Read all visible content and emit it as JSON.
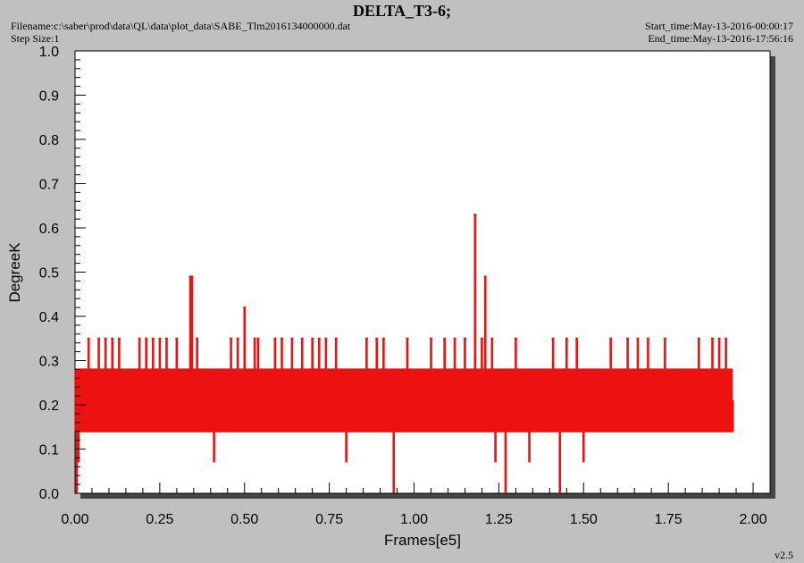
{
  "header": {
    "title": "DELTA_T3-6;",
    "filename": "Filename:c:\\saber\\prod\\data\\QL\\data\\plot_data\\SABE_Tlm2016134000000.dat",
    "step_size": "Step Size:1",
    "start_time": "Start_time:May-13-2016-00:00:17",
    "end_time": "End_time:May-13-2016-17:56:16"
  },
  "footer": {
    "version": "v2.5"
  },
  "colors": {
    "series": "#ee1111",
    "plot_bg": "#ffffff",
    "frame_bg": "#c0c0c0",
    "shadow": "#444444"
  },
  "chart_data": {
    "type": "line",
    "title": "DELTA_T3-6;",
    "xlabel": "Frames[e5]",
    "ylabel": "DegreeK",
    "xlim": [
      0.0,
      2.05
    ],
    "ylim": [
      0.0,
      1.0
    ],
    "xticks": [
      "0.00",
      "0.25",
      "0.50",
      "0.75",
      "1.00",
      "1.25",
      "1.50",
      "1.75",
      "2.00"
    ],
    "yticks": [
      "0.0",
      "0.1",
      "0.2",
      "0.3",
      "0.4",
      "0.5",
      "0.6",
      "0.7",
      "0.8",
      "0.9",
      "1.0"
    ],
    "grid": false,
    "series": [
      {
        "band": {
          "x_start": 0.0,
          "x_end": 1.94,
          "y_low": 0.14,
          "y_high": 0.28
        },
        "spikes": [
          {
            "x": 0.005,
            "y": 0.0
          },
          {
            "x": 0.01,
            "y": 0.07
          },
          {
            "x": 0.03,
            "y": 0.21
          },
          {
            "x": 0.04,
            "y": 0.35
          },
          {
            "x": 0.07,
            "y": 0.35
          },
          {
            "x": 0.08,
            "y": 0.19
          },
          {
            "x": 0.09,
            "y": 0.35
          },
          {
            "x": 0.11,
            "y": 0.35
          },
          {
            "x": 0.13,
            "y": 0.35
          },
          {
            "x": 0.19,
            "y": 0.35
          },
          {
            "x": 0.21,
            "y": 0.35
          },
          {
            "x": 0.23,
            "y": 0.35
          },
          {
            "x": 0.24,
            "y": 0.21
          },
          {
            "x": 0.25,
            "y": 0.35
          },
          {
            "x": 0.27,
            "y": 0.35
          },
          {
            "x": 0.3,
            "y": 0.35
          },
          {
            "x": 0.34,
            "y": 0.49
          },
          {
            "x": 0.345,
            "y": 0.49
          },
          {
            "x": 0.36,
            "y": 0.35
          },
          {
            "x": 0.41,
            "y": 0.07
          },
          {
            "x": 0.46,
            "y": 0.35
          },
          {
            "x": 0.48,
            "y": 0.35
          },
          {
            "x": 0.5,
            "y": 0.42
          },
          {
            "x": 0.53,
            "y": 0.35
          },
          {
            "x": 0.54,
            "y": 0.35
          },
          {
            "x": 0.59,
            "y": 0.35
          },
          {
            "x": 0.61,
            "y": 0.35
          },
          {
            "x": 0.64,
            "y": 0.35
          },
          {
            "x": 0.67,
            "y": 0.35
          },
          {
            "x": 0.7,
            "y": 0.35
          },
          {
            "x": 0.72,
            "y": 0.35
          },
          {
            "x": 0.74,
            "y": 0.35
          },
          {
            "x": 0.77,
            "y": 0.35
          },
          {
            "x": 0.8,
            "y": 0.07
          },
          {
            "x": 0.83,
            "y": 0.21
          },
          {
            "x": 0.86,
            "y": 0.35
          },
          {
            "x": 0.89,
            "y": 0.35
          },
          {
            "x": 0.91,
            "y": 0.35
          },
          {
            "x": 0.94,
            "y": 0.0
          },
          {
            "x": 0.98,
            "y": 0.35
          },
          {
            "x": 1.0,
            "y": 0.21
          },
          {
            "x": 1.05,
            "y": 0.35
          },
          {
            "x": 1.09,
            "y": 0.35
          },
          {
            "x": 1.12,
            "y": 0.35
          },
          {
            "x": 1.15,
            "y": 0.35
          },
          {
            "x": 1.18,
            "y": 0.63
          },
          {
            "x": 1.2,
            "y": 0.35
          },
          {
            "x": 1.21,
            "y": 0.49
          },
          {
            "x": 1.23,
            "y": 0.35
          },
          {
            "x": 1.24,
            "y": 0.07
          },
          {
            "x": 1.27,
            "y": 0.0
          },
          {
            "x": 1.3,
            "y": 0.35
          },
          {
            "x": 1.34,
            "y": 0.07
          },
          {
            "x": 1.41,
            "y": 0.35
          },
          {
            "x": 1.43,
            "y": 0.0
          },
          {
            "x": 1.45,
            "y": 0.35
          },
          {
            "x": 1.48,
            "y": 0.35
          },
          {
            "x": 1.5,
            "y": 0.07
          },
          {
            "x": 1.58,
            "y": 0.35
          },
          {
            "x": 1.63,
            "y": 0.35
          },
          {
            "x": 1.66,
            "y": 0.35
          },
          {
            "x": 1.69,
            "y": 0.35
          },
          {
            "x": 1.74,
            "y": 0.35
          },
          {
            "x": 1.79,
            "y": 0.21
          },
          {
            "x": 1.84,
            "y": 0.35
          },
          {
            "x": 1.88,
            "y": 0.35
          },
          {
            "x": 1.9,
            "y": 0.35
          },
          {
            "x": 1.92,
            "y": 0.35
          },
          {
            "x": 1.94,
            "y": 0.21
          }
        ]
      }
    ]
  }
}
